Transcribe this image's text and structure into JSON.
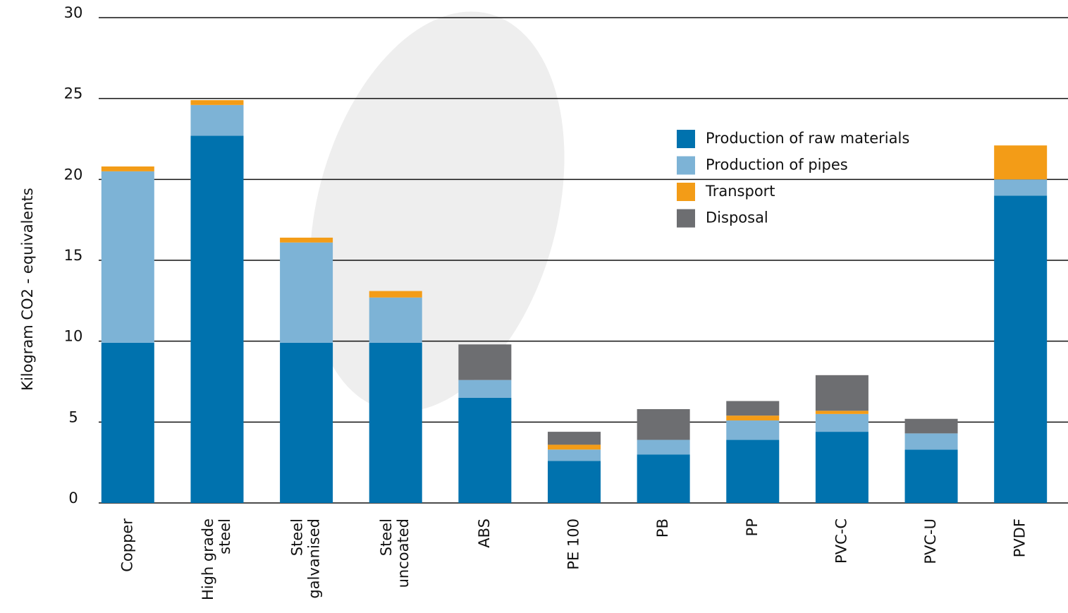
{
  "chart_data": {
    "type": "stacked-bar",
    "y_label": "Kilogram CO2 - equivalents",
    "categories": [
      "Copper",
      "High grade\nsteel",
      "Steel\ngalvanised",
      "Steel\nuncoated",
      "ABS",
      "PE 100",
      "PB",
      "PP",
      "PVC-C",
      "PVC-U",
      "PVDF"
    ],
    "series": [
      {
        "name": "Production of raw materials",
        "color": "#0072ae",
        "values": [
          9.9,
          22.7,
          9.9,
          9.9,
          6.5,
          2.6,
          3.0,
          3.9,
          4.4,
          3.3,
          19.0
        ]
      },
      {
        "name": "Production of pipes",
        "color": "#7db3d6",
        "values": [
          10.6,
          1.9,
          6.2,
          2.8,
          1.1,
          0.7,
          0.9,
          1.2,
          1.1,
          1.0,
          1.0
        ]
      },
      {
        "name": "Transport",
        "color": "#f39c17",
        "values": [
          0.3,
          0.3,
          0.3,
          0.4,
          0,
          0.3,
          0,
          0.3,
          0.2,
          0,
          2.1
        ]
      },
      {
        "name": "Disposal",
        "color": "#6d6e71",
        "values": [
          0,
          0,
          0,
          0,
          2.2,
          0.8,
          1.9,
          0.9,
          2.2,
          0.9,
          0
        ]
      }
    ],
    "ylim": [
      0,
      30
    ],
    "yticks": [
      0,
      5,
      10,
      15,
      20,
      25,
      30
    ],
    "grid": true
  }
}
